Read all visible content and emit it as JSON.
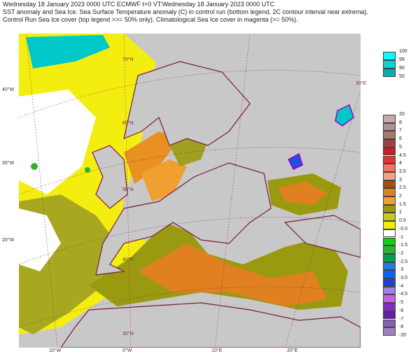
{
  "header": {
    "line1": "Wednesday 18 January 2023 0000 UTC  ECMWF  t+0  VT:Wednesday 18 January 2023 0000 UTC",
    "line2": "SST anomaly and Sea Ice. Sea Surface Temperature anomaly (C) in control run (bottom legend, 2C contour interval near extrema).",
    "line3": "Control Run Sea Ice cover (top legend >>= 50% only). Climatological Sea Ice cover in magenta (>= 50%)."
  },
  "map": {
    "ocean_color": "#c8c8c8",
    "lat_left": [
      "40°W",
      "30°W",
      "20°W"
    ],
    "lon_bottom": [
      "10°W",
      "0°W",
      "10°E",
      "20°E"
    ],
    "lat_inner": [
      "70°N",
      "60°N",
      "50°N",
      "40°N",
      "30°N"
    ],
    "lon_inner": [
      "30°E"
    ]
  },
  "ice_legend": {
    "labels": [
      "100",
      "99",
      "90",
      "50"
    ],
    "colors": [
      "#00ffff",
      "#00d8d8",
      "#00b0b0"
    ]
  },
  "sst_legend": {
    "labels": [
      "20",
      "8",
      "7",
      "6",
      "5",
      "4.5",
      "4",
      "3.5",
      "3",
      "2.5",
      "2",
      "1.5",
      "1",
      "0.5",
      "-0.5",
      "-1",
      "-1.5",
      "-2",
      "-2.5",
      "-3",
      "-3.5",
      "-4",
      "-4.5",
      "-5",
      "-6",
      "-7",
      "-8",
      "-20"
    ],
    "colors": [
      "#c8a8b0",
      "#b09090",
      "#a87868",
      "#a04040",
      "#c82020",
      "#e83030",
      "#f87060",
      "#f8a080",
      "#a05010",
      "#e08020",
      "#f0a030",
      "#9a9a10",
      "#c8c820",
      "#f0f000",
      "#ffffff",
      "#10d010",
      "#30b030",
      "#00a050",
      "#2080e0",
      "#1060f0",
      "#2040d0",
      "#a080e0",
      "#c060f0",
      "#8030c0",
      "#6020a0",
      "#8060b0",
      "#a080c0"
    ]
  }
}
